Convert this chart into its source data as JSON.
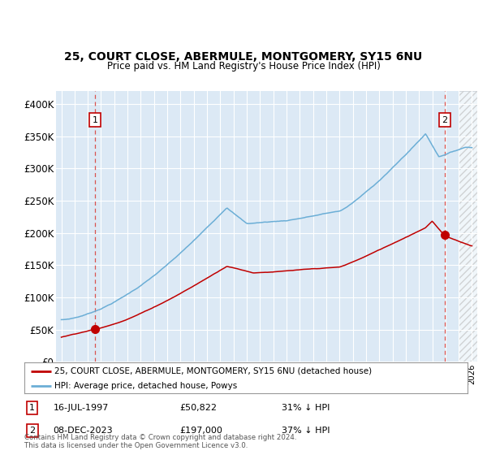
{
  "title": "25, COURT CLOSE, ABERMULE, MONTGOMERY, SY15 6NU",
  "subtitle": "Price paid vs. HM Land Registry's House Price Index (HPI)",
  "bg_color": "#dce9f5",
  "hpi_color": "#6baed6",
  "price_color": "#c00000",
  "marker_color": "#c00000",
  "dashed_line_color": "#d9534f",
  "ylabel_vals": [
    0,
    50000,
    100000,
    150000,
    200000,
    250000,
    300000,
    350000,
    400000
  ],
  "ylabel_strs": [
    "£0",
    "£50K",
    "£100K",
    "£150K",
    "£200K",
    "£250K",
    "£300K",
    "£350K",
    "£400K"
  ],
  "ylim": [
    0,
    420000
  ],
  "xlim_start": 1994.6,
  "xlim_end": 2026.4,
  "sale1_x": 1997.54,
  "sale1_y": 50822,
  "sale1_label": "1",
  "sale2_x": 2023.93,
  "sale2_y": 197000,
  "sale2_label": "2",
  "legend_line1": "25, COURT CLOSE, ABERMULE, MONTGOMERY, SY15 6NU (detached house)",
  "legend_line2": "HPI: Average price, detached house, Powys",
  "annotation1_date": "16-JUL-1997",
  "annotation1_price": "£50,822",
  "annotation1_hpi": "31% ↓ HPI",
  "annotation2_date": "08-DEC-2023",
  "annotation2_price": "£197,000",
  "annotation2_hpi": "37% ↓ HPI",
  "footnote": "Contains HM Land Registry data © Crown copyright and database right 2024.\nThis data is licensed under the Open Government Licence v3.0."
}
